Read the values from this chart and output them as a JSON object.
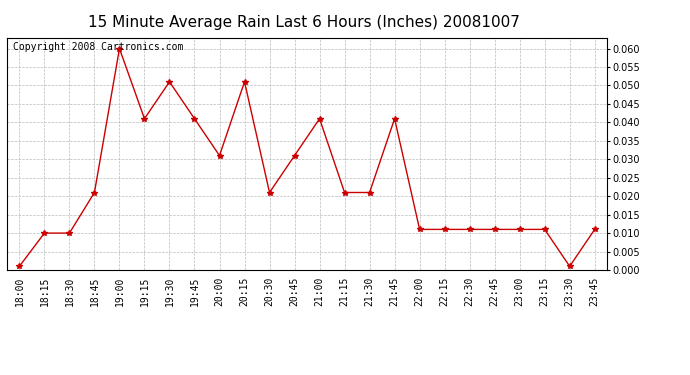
{
  "title": "15 Minute Average Rain Last 6 Hours (Inches) 20081007",
  "copyright": "Copyright 2008 Cartronics.com",
  "x_labels": [
    "18:00",
    "18:15",
    "18:30",
    "18:45",
    "19:00",
    "19:15",
    "19:30",
    "19:45",
    "20:00",
    "20:15",
    "20:30",
    "20:45",
    "21:00",
    "21:15",
    "21:30",
    "21:45",
    "22:00",
    "22:15",
    "22:30",
    "22:45",
    "23:00",
    "23:15",
    "23:30",
    "23:45"
  ],
  "y_values": [
    0.001,
    0.01,
    0.01,
    0.021,
    0.06,
    0.041,
    0.051,
    0.041,
    0.031,
    0.051,
    0.021,
    0.031,
    0.041,
    0.021,
    0.021,
    0.041,
    0.011,
    0.011,
    0.011,
    0.011,
    0.011,
    0.011,
    0.001,
    0.011
  ],
  "line_color": "#cc0000",
  "marker": "*",
  "marker_size": 4,
  "ylim": [
    0.0,
    0.063
  ],
  "yticks": [
    0.0,
    0.005,
    0.01,
    0.015,
    0.02,
    0.025,
    0.03,
    0.035,
    0.04,
    0.045,
    0.05,
    0.055,
    0.06
  ],
  "grid_color": "#bbbbbb",
  "background_color": "#ffffff",
  "title_fontsize": 11,
  "copyright_fontsize": 7,
  "axis_label_fontsize": 7
}
